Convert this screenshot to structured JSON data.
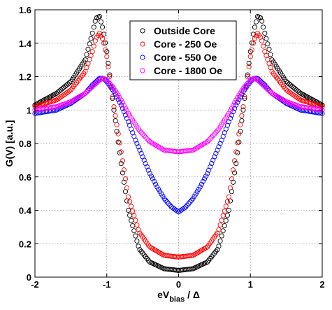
{
  "chart_data": {
    "type": "scatter",
    "title": "",
    "xlabel": {
      "main": "eV",
      "sub": "bias",
      "tail": " / Δ"
    },
    "ylabel": "G(V) [a.u.]",
    "xlim": [
      -2,
      2
    ],
    "ylim": [
      0,
      1.6
    ],
    "xticks": [
      -2,
      -1,
      0,
      1,
      2
    ],
    "yticks": [
      0,
      0.2,
      0.4,
      0.6,
      0.8,
      1,
      1.2,
      1.4,
      1.6
    ],
    "xtick_labels": [
      "-2",
      "-1",
      "0",
      "1",
      "2"
    ],
    "ytick_labels": [
      "0",
      "0.2",
      "0.4",
      "0.6",
      "0.8",
      "1",
      "1.2",
      "1.4",
      "1.6"
    ],
    "grid": true,
    "legend_position": "top-center",
    "marker": "open-circle",
    "series": [
      {
        "name": "Outside Core",
        "color": "#000000",
        "x": [
          0,
          0.2,
          0.4,
          0.55,
          0.7,
          0.8,
          0.9,
          1.0,
          1.05,
          1.1,
          1.15,
          1.2,
          1.3,
          1.5,
          1.7,
          2.0
        ],
        "y": [
          0.04,
          0.05,
          0.09,
          0.17,
          0.4,
          0.68,
          1.0,
          1.35,
          1.48,
          1.56,
          1.55,
          1.46,
          1.3,
          1.17,
          1.1,
          1.03
        ]
      },
      {
        "name": "Core - 250 Oe",
        "color": "#ff0000",
        "x": [
          0,
          0.2,
          0.4,
          0.55,
          0.7,
          0.8,
          0.9,
          1.0,
          1.05,
          1.1,
          1.15,
          1.2,
          1.3,
          1.5,
          1.7,
          2.0
        ],
        "y": [
          0.12,
          0.13,
          0.18,
          0.27,
          0.48,
          0.75,
          1.02,
          1.32,
          1.42,
          1.46,
          1.43,
          1.35,
          1.23,
          1.12,
          1.06,
          1.02
        ]
      },
      {
        "name": "Core - 550 Oe",
        "color": "#0000ff",
        "x": [
          0,
          0.1,
          0.2,
          0.3,
          0.4,
          0.5,
          0.6,
          0.7,
          0.8,
          0.9,
          1.0,
          1.05,
          1.1,
          1.2,
          1.3,
          1.5,
          1.7,
          2.0
        ],
        "y": [
          0.39,
          0.42,
          0.47,
          0.54,
          0.62,
          0.72,
          0.82,
          0.93,
          1.03,
          1.11,
          1.17,
          1.19,
          1.19,
          1.15,
          1.1,
          1.04,
          1.0,
          0.98
        ]
      },
      {
        "name": "Core - 1800 Oe",
        "color": "#ff00ff",
        "x": [
          0,
          0.2,
          0.4,
          0.55,
          0.7,
          0.8,
          0.9,
          1.0,
          1.05,
          1.1,
          1.2,
          1.3,
          1.5,
          1.7,
          2.0
        ],
        "y": [
          0.75,
          0.76,
          0.81,
          0.88,
          0.98,
          1.06,
          1.13,
          1.18,
          1.19,
          1.18,
          1.14,
          1.1,
          1.05,
          1.02,
          1.0
        ]
      }
    ]
  }
}
